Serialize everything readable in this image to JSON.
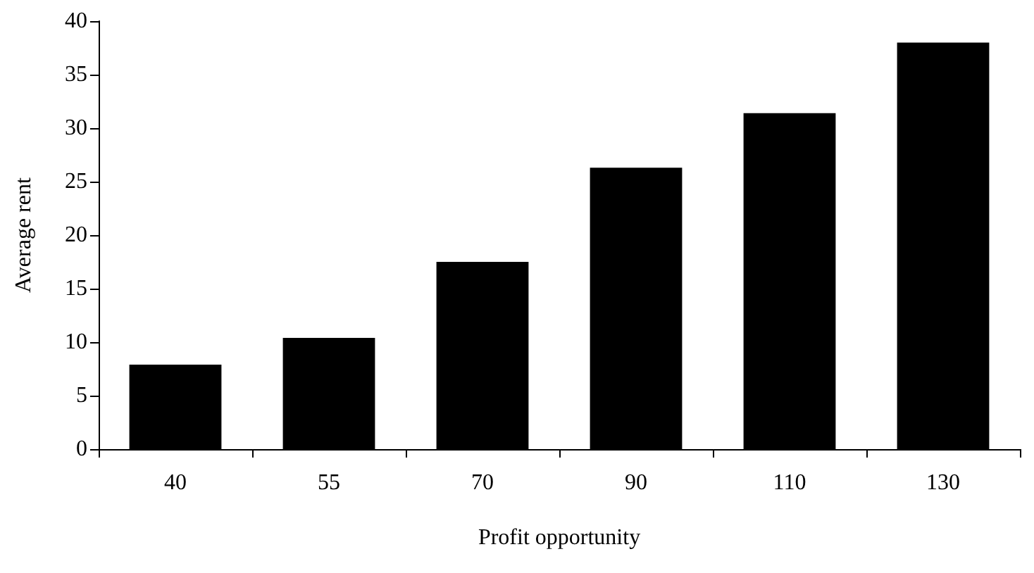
{
  "chart_data": {
    "type": "bar",
    "xlabel": "Profit opportunity",
    "ylabel": "Average rent",
    "categories": [
      "40",
      "55",
      "70",
      "90",
      "110",
      "130"
    ],
    "values": [
      7.9,
      10.4,
      17.5,
      26.3,
      31.4,
      38.0
    ],
    "color": "#000000",
    "ylim": [
      0,
      40
    ],
    "yticks": [
      0,
      5,
      10,
      15,
      20,
      25,
      30,
      35,
      40
    ],
    "grid": false
  }
}
